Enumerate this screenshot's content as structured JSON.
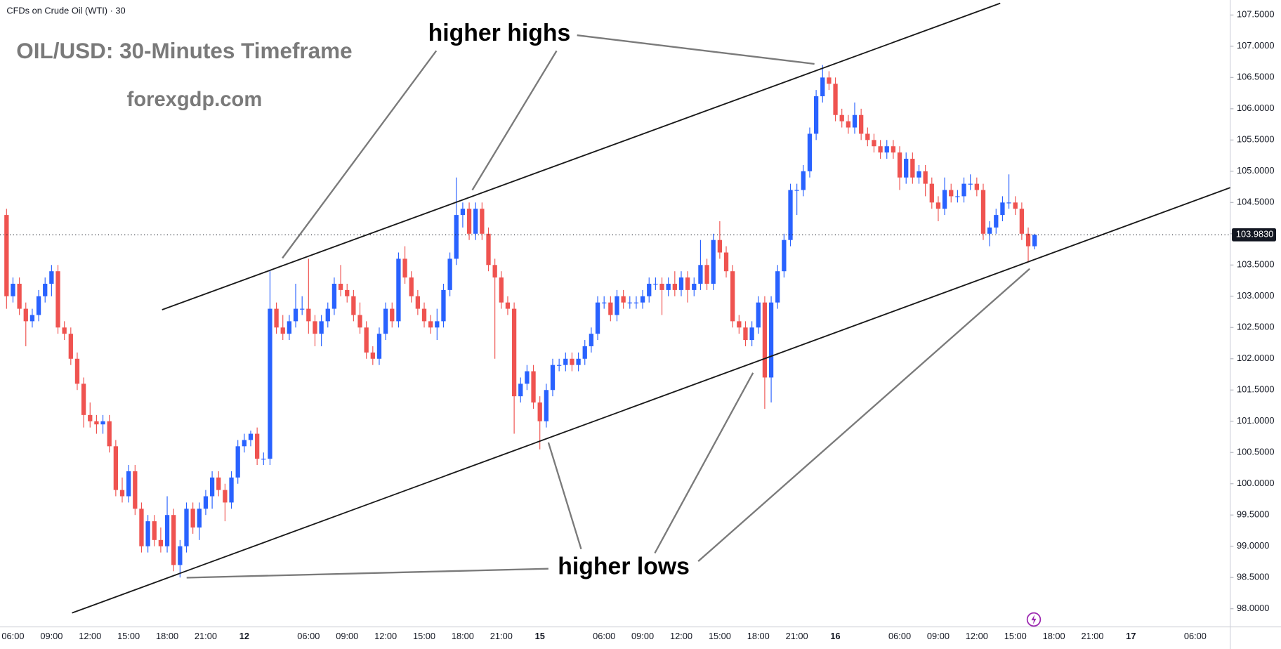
{
  "chart_data": {
    "type": "candlestick",
    "source": "CFDs on Crude Oil (WTI) · 30",
    "title": "OIL/USD: 30-Minutes Timeframe",
    "subtitle": "forexgdp.com",
    "annotations": [
      "higher highs",
      "higher lows"
    ],
    "up_color": "#2962ff",
    "down_color": "#ef5350",
    "ylim": [
      97.71,
      107.74
    ],
    "yticks": [
      {
        "value": 98,
        "label": "98.0000"
      },
      {
        "value": 98.5,
        "label": "98.5000"
      },
      {
        "value": 99,
        "label": "99.0000"
      },
      {
        "value": 99.5,
        "label": "99.5000"
      },
      {
        "value": 100,
        "label": "100.0000"
      },
      {
        "value": 100.5,
        "label": "100.5000"
      },
      {
        "value": 101,
        "label": "101.0000"
      },
      {
        "value": 101.5,
        "label": "101.5000"
      },
      {
        "value": 102,
        "label": "102.0000"
      },
      {
        "value": 102.5,
        "label": "102.5000"
      },
      {
        "value": 103,
        "label": "103.0000"
      },
      {
        "value": 103.5,
        "label": "103.5000"
      },
      {
        "value": 104,
        "label": "104.0000"
      },
      {
        "value": 104.5,
        "label": "104.5000"
      },
      {
        "value": 105,
        "label": "105.0000"
      },
      {
        "value": 105.5,
        "label": "105.5000"
      },
      {
        "value": 106,
        "label": "106.0000"
      },
      {
        "value": 106.5,
        "label": "106.5000"
      },
      {
        "value": 107,
        "label": "107.0000"
      },
      {
        "value": 107.5,
        "label": "107.5000"
      }
    ],
    "last_price": {
      "value": 103.983,
      "label": "103.9830"
    },
    "categories": [
      null,
      "06:00",
      null,
      null,
      null,
      null,
      null,
      "09:00",
      null,
      null,
      null,
      null,
      null,
      "12:00",
      null,
      null,
      null,
      null,
      null,
      "15:00",
      null,
      null,
      null,
      null,
      null,
      "18:00",
      null,
      null,
      null,
      null,
      null,
      "21:00",
      null,
      null,
      null,
      null,
      null,
      "12",
      null,
      null,
      null,
      null,
      null,
      null,
      null,
      null,
      null,
      "06:00",
      null,
      null,
      null,
      null,
      null,
      "09:00",
      null,
      null,
      null,
      null,
      null,
      "12:00",
      null,
      null,
      null,
      null,
      null,
      "15:00",
      null,
      null,
      null,
      null,
      null,
      "18:00",
      null,
      null,
      null,
      null,
      null,
      "21:00",
      null,
      null,
      null,
      null,
      null,
      "15",
      null,
      null,
      null,
      null,
      null,
      null,
      null,
      null,
      null,
      "06:00",
      null,
      null,
      null,
      null,
      null,
      "09:00",
      null,
      null,
      null,
      null,
      null,
      "12:00",
      null,
      null,
      null,
      null,
      null,
      "15:00",
      null,
      null,
      null,
      null,
      null,
      "18:00",
      null,
      null,
      null,
      null,
      null,
      "21:00",
      null,
      null,
      null,
      null,
      null,
      "16",
      null,
      null,
      null,
      null,
      null,
      null,
      null,
      null,
      null,
      "06:00",
      null,
      null,
      null,
      null,
      null,
      "09:00",
      null,
      null,
      null,
      null,
      null,
      "12:00",
      null,
      null,
      null,
      null,
      null,
      "15:00",
      null,
      null,
      null,
      null,
      null,
      "18:00",
      null,
      null,
      null,
      null,
      null,
      "21:00",
      null,
      null,
      null,
      null,
      null,
      "17",
      null,
      null,
      null,
      null,
      null,
      null,
      null,
      null,
      null,
      "06:00",
      null,
      null,
      null,
      null,
      null
    ],
    "ohlc": [
      [
        104.3,
        104.4,
        102.8,
        103.0
      ],
      [
        103.0,
        103.3,
        102.9,
        103.2
      ],
      [
        103.2,
        103.3,
        102.7,
        102.8
      ],
      [
        102.8,
        102.9,
        102.2,
        102.6
      ],
      [
        102.6,
        102.8,
        102.5,
        102.7
      ],
      [
        102.7,
        103.1,
        102.6,
        103.0
      ],
      [
        103.0,
        103.3,
        102.9,
        103.2
      ],
      [
        103.2,
        103.5,
        103.0,
        103.4
      ],
      [
        103.4,
        103.5,
        102.4,
        102.5
      ],
      [
        102.5,
        102.6,
        102.3,
        102.4
      ],
      [
        102.4,
        102.5,
        101.9,
        102.0
      ],
      [
        102.0,
        102.1,
        101.5,
        101.6
      ],
      [
        101.6,
        101.7,
        100.9,
        101.1
      ],
      [
        101.1,
        101.3,
        100.9,
        101.0
      ],
      [
        101.0,
        101.1,
        100.8,
        100.95
      ],
      [
        100.95,
        101.1,
        100.8,
        101.0
      ],
      [
        101.0,
        101.1,
        100.5,
        100.6
      ],
      [
        100.6,
        100.7,
        99.8,
        99.9
      ],
      [
        99.9,
        100.1,
        99.7,
        99.8
      ],
      [
        99.8,
        100.3,
        99.7,
        100.2
      ],
      [
        100.2,
        100.3,
        99.5,
        99.6
      ],
      [
        99.6,
        99.7,
        98.9,
        99.0
      ],
      [
        99.0,
        99.5,
        98.9,
        99.4
      ],
      [
        99.4,
        99.5,
        99.0,
        99.1
      ],
      [
        99.1,
        99.3,
        98.9,
        99.0
      ],
      [
        99.0,
        99.8,
        98.9,
        99.5
      ],
      [
        99.5,
        99.6,
        98.6,
        98.7
      ],
      [
        98.7,
        99.1,
        98.5,
        99.0
      ],
      [
        99.0,
        99.7,
        98.9,
        99.6
      ],
      [
        99.6,
        99.7,
        99.2,
        99.3
      ],
      [
        99.3,
        99.7,
        99.1,
        99.6
      ],
      [
        99.6,
        99.9,
        99.5,
        99.8
      ],
      [
        99.8,
        100.2,
        99.6,
        100.1
      ],
      [
        100.1,
        100.2,
        99.8,
        99.9
      ],
      [
        99.9,
        100.0,
        99.4,
        99.7
      ],
      [
        99.7,
        100.2,
        99.6,
        100.1
      ],
      [
        100.1,
        100.7,
        100.0,
        100.6
      ],
      [
        100.6,
        100.8,
        100.5,
        100.7
      ],
      [
        100.7,
        100.85,
        100.6,
        100.8
      ],
      [
        100.8,
        100.9,
        100.3,
        100.4
      ],
      [
        100.4,
        100.5,
        100.3,
        100.4
      ],
      [
        100.4,
        103.4,
        100.3,
        102.8
      ],
      [
        102.8,
        102.9,
        102.4,
        102.5
      ],
      [
        102.5,
        102.7,
        102.3,
        102.4
      ],
      [
        102.4,
        102.7,
        102.3,
        102.6
      ],
      [
        102.6,
        103.2,
        102.5,
        102.8
      ],
      [
        102.8,
        103.0,
        102.7,
        102.8
      ],
      [
        102.8,
        103.6,
        102.4,
        102.6
      ],
      [
        102.6,
        102.7,
        102.2,
        102.4
      ],
      [
        102.4,
        102.7,
        102.2,
        102.6
      ],
      [
        102.6,
        102.9,
        102.5,
        102.8
      ],
      [
        102.8,
        103.3,
        102.7,
        103.2
      ],
      [
        103.2,
        103.5,
        103.0,
        103.1
      ],
      [
        103.1,
        103.2,
        102.9,
        103.0
      ],
      [
        103.0,
        103.1,
        102.6,
        102.7
      ],
      [
        102.7,
        102.9,
        102.4,
        102.5
      ],
      [
        102.5,
        102.6,
        102.0,
        102.1
      ],
      [
        102.1,
        102.2,
        101.9,
        102.0
      ],
      [
        102.0,
        102.5,
        101.9,
        102.4
      ],
      [
        102.4,
        102.9,
        102.3,
        102.8
      ],
      [
        102.8,
        102.9,
        102.5,
        102.6
      ],
      [
        102.6,
        103.7,
        102.5,
        103.6
      ],
      [
        103.6,
        103.8,
        103.2,
        103.3
      ],
      [
        103.3,
        103.4,
        102.9,
        103.0
      ],
      [
        103.0,
        103.1,
        102.7,
        102.8
      ],
      [
        102.8,
        102.9,
        102.5,
        102.6
      ],
      [
        102.6,
        102.7,
        102.4,
        102.5
      ],
      [
        102.5,
        102.8,
        102.3,
        102.6
      ],
      [
        102.6,
        103.2,
        102.5,
        103.1
      ],
      [
        103.1,
        103.7,
        103.0,
        103.6
      ],
      [
        103.6,
        104.9,
        103.5,
        104.3
      ],
      [
        104.3,
        104.5,
        104.1,
        104.4
      ],
      [
        104.4,
        104.5,
        103.9,
        104.0
      ],
      [
        104.0,
        104.5,
        103.9,
        104.4
      ],
      [
        104.4,
        104.5,
        103.9,
        104.0
      ],
      [
        104.0,
        104.1,
        103.4,
        103.5
      ],
      [
        103.5,
        103.6,
        102.0,
        103.3
      ],
      [
        103.3,
        103.4,
        102.8,
        102.9
      ],
      [
        102.9,
        103.0,
        102.7,
        102.8
      ],
      [
        102.8,
        102.9,
        100.8,
        101.4
      ],
      [
        101.4,
        101.7,
        101.3,
        101.6
      ],
      [
        101.6,
        101.9,
        101.5,
        101.8
      ],
      [
        101.8,
        101.9,
        101.2,
        101.3
      ],
      [
        101.3,
        101.4,
        100.55,
        101.0
      ],
      [
        101.0,
        101.6,
        100.9,
        101.5
      ],
      [
        101.5,
        102.0,
        101.4,
        101.9
      ],
      [
        101.9,
        102.0,
        101.8,
        101.9
      ],
      [
        101.9,
        102.1,
        101.8,
        102.0
      ],
      [
        102.0,
        102.1,
        101.8,
        101.9
      ],
      [
        101.9,
        102.1,
        101.8,
        102.0
      ],
      [
        102.0,
        102.3,
        101.9,
        102.2
      ],
      [
        102.2,
        102.5,
        102.1,
        102.4
      ],
      [
        102.4,
        103.0,
        102.3,
        102.9
      ],
      [
        102.9,
        103.0,
        102.8,
        102.9
      ],
      [
        102.9,
        103.0,
        102.6,
        102.7
      ],
      [
        102.7,
        103.1,
        102.6,
        103.0
      ],
      [
        103.0,
        103.1,
        102.8,
        102.9
      ],
      [
        102.9,
        103.0,
        102.8,
        102.9
      ],
      [
        102.9,
        103.0,
        102.8,
        102.9
      ],
      [
        102.9,
        103.1,
        102.8,
        103.0
      ],
      [
        103.0,
        103.3,
        102.9,
        103.2
      ],
      [
        103.2,
        103.3,
        103.1,
        103.2
      ],
      [
        103.2,
        103.3,
        102.7,
        103.1
      ],
      [
        103.1,
        103.3,
        103.0,
        103.2
      ],
      [
        103.2,
        103.4,
        103.0,
        103.1
      ],
      [
        103.1,
        103.4,
        103.0,
        103.3
      ],
      [
        103.3,
        103.4,
        102.9,
        103.1
      ],
      [
        103.1,
        103.3,
        103.0,
        103.2
      ],
      [
        103.2,
        103.9,
        103.1,
        103.5
      ],
      [
        103.5,
        103.6,
        103.1,
        103.2
      ],
      [
        103.2,
        104.0,
        103.1,
        103.9
      ],
      [
        103.9,
        104.2,
        103.6,
        103.7
      ],
      [
        103.7,
        103.8,
        103.3,
        103.4
      ],
      [
        103.4,
        103.5,
        102.5,
        102.6
      ],
      [
        102.6,
        102.7,
        102.4,
        102.5
      ],
      [
        102.5,
        102.6,
        102.2,
        102.3
      ],
      [
        102.3,
        102.6,
        102.2,
        102.5
      ],
      [
        102.5,
        103.0,
        102.4,
        102.9
      ],
      [
        102.9,
        103.0,
        101.2,
        101.7
      ],
      [
        101.7,
        103.0,
        101.3,
        102.9
      ],
      [
        102.9,
        103.5,
        102.8,
        103.4
      ],
      [
        103.4,
        104.0,
        103.3,
        103.9
      ],
      [
        103.9,
        104.8,
        103.8,
        104.7
      ],
      [
        104.7,
        104.8,
        104.3,
        104.7
      ],
      [
        104.7,
        105.1,
        104.6,
        105.0
      ],
      [
        105.0,
        105.7,
        104.9,
        105.6
      ],
      [
        105.6,
        106.3,
        105.5,
        106.2
      ],
      [
        106.2,
        106.7,
        106.1,
        106.5
      ],
      [
        106.5,
        106.6,
        106.3,
        106.4
      ],
      [
        106.4,
        106.5,
        105.8,
        105.9
      ],
      [
        105.9,
        106.0,
        105.7,
        105.8
      ],
      [
        105.8,
        105.9,
        105.6,
        105.7
      ],
      [
        105.7,
        106.1,
        105.6,
        105.9
      ],
      [
        105.9,
        106.0,
        105.5,
        105.6
      ],
      [
        105.6,
        105.7,
        105.4,
        105.5
      ],
      [
        105.5,
        105.6,
        105.3,
        105.4
      ],
      [
        105.4,
        105.5,
        105.2,
        105.3
      ],
      [
        105.3,
        105.5,
        105.2,
        105.4
      ],
      [
        105.4,
        105.5,
        105.2,
        105.3
      ],
      [
        105.3,
        105.4,
        104.7,
        104.9
      ],
      [
        104.9,
        105.3,
        104.8,
        105.2
      ],
      [
        105.2,
        105.3,
        104.8,
        104.9
      ],
      [
        104.9,
        105.1,
        104.8,
        105.0
      ],
      [
        105.0,
        105.1,
        104.6,
        104.8
      ],
      [
        104.8,
        104.9,
        104.4,
        104.5
      ],
      [
        104.5,
        104.6,
        104.2,
        104.4
      ],
      [
        104.4,
        104.9,
        104.3,
        104.7
      ],
      [
        104.7,
        104.8,
        104.5,
        104.6
      ],
      [
        104.6,
        104.7,
        104.5,
        104.6
      ],
      [
        104.6,
        104.9,
        104.5,
        104.8
      ],
      [
        104.8,
        104.95,
        104.7,
        104.8
      ],
      [
        104.8,
        104.9,
        104.6,
        104.7
      ],
      [
        104.7,
        104.8,
        103.9,
        104.0
      ],
      [
        104.0,
        104.2,
        103.8,
        104.1
      ],
      [
        104.1,
        104.4,
        104.0,
        104.3
      ],
      [
        104.3,
        104.6,
        104.2,
        104.5
      ],
      [
        104.5,
        104.95,
        104.4,
        104.5
      ],
      [
        104.5,
        104.6,
        104.3,
        104.4
      ],
      [
        104.4,
        104.5,
        103.9,
        104.0
      ],
      [
        104.0,
        104.1,
        103.55,
        103.8
      ],
      [
        103.8,
        104.0,
        103.75,
        103.983
      ],
      null,
      null,
      null,
      null,
      null,
      null,
      null,
      null,
      null,
      null,
      null,
      null,
      null,
      null,
      null,
      null,
      null,
      null,
      null,
      null,
      null,
      null,
      null,
      null,
      null,
      null,
      null,
      null,
      null,
      null
    ]
  }
}
